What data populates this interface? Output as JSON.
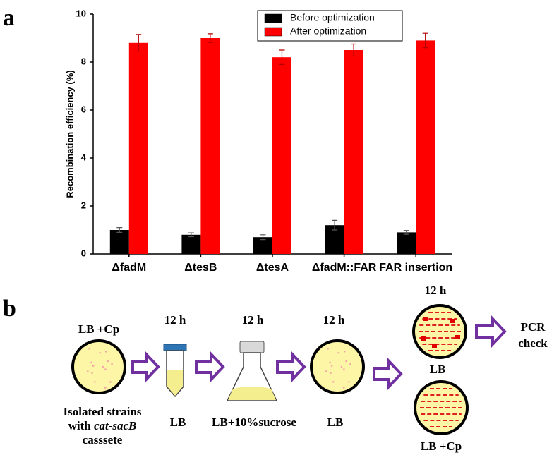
{
  "chart_data": {
    "type": "bar",
    "y_label": "Recombination efficiency (%)",
    "categories": [
      "ΔfadM",
      "ΔtesB",
      "ΔtesA",
      "ΔfadM::FAR",
      "FAR insertion"
    ],
    "series": [
      {
        "name": "Before optimization",
        "color": "#000000",
        "values": [
          1.0,
          0.8,
          0.7,
          1.2,
          0.9
        ],
        "errors": [
          0.1,
          0.08,
          0.1,
          0.2,
          0.08
        ]
      },
      {
        "name": "After optimization",
        "color": "#ff0000",
        "values": [
          8.8,
          9.0,
          8.2,
          8.5,
          8.9
        ],
        "errors": [
          0.35,
          0.18,
          0.3,
          0.25,
          0.3
        ]
      }
    ],
    "ylim": [
      0,
      10
    ],
    "yticks": [
      0,
      2,
      4,
      6,
      8,
      10
    ],
    "legend": "upper right",
    "grid": false
  },
  "panels": {
    "a": "a",
    "b": "b"
  },
  "diagram": {
    "start": {
      "medium": "LB +Cp",
      "caption": [
        "Isolated strains",
        "with",
        "cat-sacB",
        "casssete"
      ]
    },
    "steps": [
      {
        "time": "12 h",
        "medium": "LB"
      },
      {
        "time": "12 h",
        "medium": "LB+10%sucrose"
      },
      {
        "time": "12 h",
        "medium": "LB"
      },
      {
        "time": "12 h",
        "medium": "LB"
      }
    ],
    "replica": {
      "medium": "LB +Cp"
    },
    "end": [
      "PCR",
      "check"
    ]
  }
}
